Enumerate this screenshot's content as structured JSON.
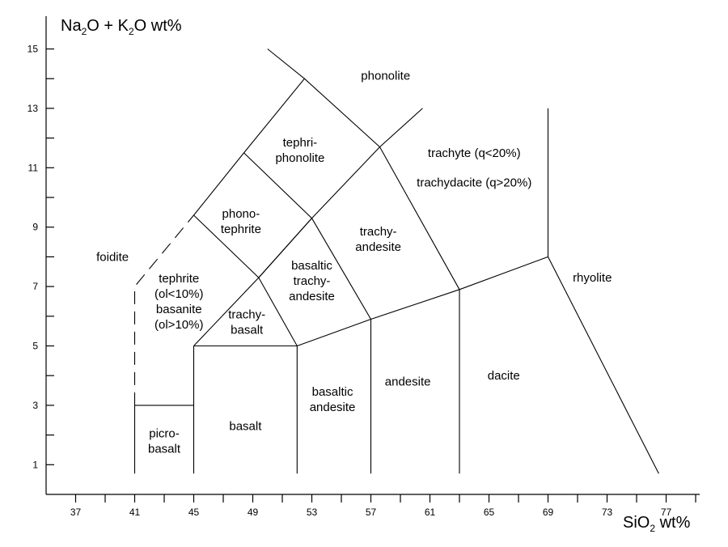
{
  "axis_titles": {
    "y": {
      "part1": "Na",
      "sub1": "2",
      "part2": "O + K",
      "sub2": "2",
      "part3": "O wt%"
    },
    "x": {
      "part1": "SiO",
      "sub1": "2",
      "part2": " wt%"
    }
  },
  "chart_data": {
    "type": "diagram",
    "xlim": [
      35,
      80
    ],
    "ylim": [
      0,
      15.5
    ],
    "x_ticks_labeled": [
      "37",
      "41",
      "45",
      "49",
      "53",
      "57",
      "61",
      "65",
      "69",
      "73",
      "77"
    ],
    "x_ticks_labeled_values": [
      37,
      41,
      45,
      49,
      53,
      57,
      61,
      65,
      69,
      73,
      77
    ],
    "x_minor_ticks": [
      39,
      43,
      47,
      51,
      55,
      59,
      63,
      67,
      71,
      75,
      79
    ],
    "y_ticks_labeled": [
      "1",
      "3",
      "5",
      "7",
      "9",
      "11",
      "13",
      "15"
    ],
    "y_ticks_labeled_values": [
      1,
      3,
      5,
      7,
      9,
      11,
      13,
      15
    ],
    "y_minor_ticks": [
      2,
      4,
      6,
      8,
      10,
      12,
      14
    ],
    "boundaries": [
      {
        "id": "picrobasalt-top",
        "style": "solid",
        "points": [
          [
            41,
            3
          ],
          [
            45,
            3
          ]
        ]
      },
      {
        "id": "x41-lower",
        "style": "solid",
        "points": [
          [
            41,
            3
          ],
          [
            41,
            0.7
          ]
        ]
      },
      {
        "id": "x41-upper",
        "style": "dashed",
        "points": [
          [
            41,
            3
          ],
          [
            41,
            7
          ],
          [
            45,
            9.4
          ]
        ]
      },
      {
        "id": "x45",
        "style": "solid",
        "points": [
          [
            45,
            0.7
          ],
          [
            45,
            5
          ]
        ]
      },
      {
        "id": "basalt-top",
        "style": "solid",
        "points": [
          [
            45,
            5
          ],
          [
            52,
            5
          ]
        ]
      },
      {
        "id": "x52",
        "style": "solid",
        "points": [
          [
            52,
            0.7
          ],
          [
            52,
            5
          ]
        ]
      },
      {
        "id": "x57",
        "style": "solid",
        "points": [
          [
            57,
            0.7
          ],
          [
            57,
            5.9
          ]
        ]
      },
      {
        "id": "x63",
        "style": "solid",
        "points": [
          [
            63,
            0.7
          ],
          [
            63,
            6.9
          ]
        ]
      },
      {
        "id": "alkaline-line",
        "style": "solid",
        "points": [
          [
            52,
            5
          ],
          [
            57,
            5.9
          ],
          [
            63,
            6.9
          ],
          [
            69,
            8
          ]
        ]
      },
      {
        "id": "x69",
        "style": "solid",
        "points": [
          [
            69,
            8
          ],
          [
            69,
            13
          ]
        ]
      },
      {
        "id": "rhyolite-dacite",
        "style": "solid",
        "points": [
          [
            69,
            8
          ],
          [
            76.5,
            0.7
          ]
        ]
      },
      {
        "id": "diag-1",
        "style": "solid",
        "points": [
          [
            45,
            5
          ],
          [
            49.4,
            7.3
          ],
          [
            53,
            9.3
          ],
          [
            57.6,
            11.7
          ],
          [
            60.5,
            13
          ]
        ]
      },
      {
        "id": "diag-2",
        "style": "solid",
        "points": [
          [
            45,
            9.4
          ],
          [
            48.4,
            11.5
          ],
          [
            52.5,
            14
          ],
          [
            50,
            15
          ]
        ]
      },
      {
        "id": "branch-a",
        "style": "solid",
        "points": [
          [
            52,
            5
          ],
          [
            49.4,
            7.3
          ]
        ]
      },
      {
        "id": "branch-b",
        "style": "solid",
        "points": [
          [
            49.4,
            7.3
          ],
          [
            45,
            9.4
          ]
        ]
      },
      {
        "id": "branch-c",
        "style": "solid",
        "points": [
          [
            53,
            9.3
          ],
          [
            48.4,
            11.5
          ]
        ]
      },
      {
        "id": "branch-d",
        "style": "solid",
        "points": [
          [
            57.6,
            11.7
          ],
          [
            52.5,
            14
          ]
        ]
      },
      {
        "id": "split-a",
        "style": "solid",
        "points": [
          [
            49.4,
            7.3
          ],
          [
            53,
            9.3
          ]
        ]
      },
      {
        "id": "split-b",
        "style": "solid",
        "points": [
          [
            53,
            9.3
          ],
          [
            57,
            5.9
          ]
        ]
      },
      {
        "id": "split-c",
        "style": "solid",
        "points": [
          [
            57.6,
            11.7
          ],
          [
            63,
            6.9
          ]
        ]
      }
    ],
    "fields": [
      {
        "name": "foidite",
        "lines": [
          "foidite"
        ],
        "at": [
          39.5,
          8
        ]
      },
      {
        "name": "tephrite-basanite",
        "lines": [
          "tephrite",
          "(ol<10%)",
          "basanite",
          "(ol>10%)"
        ],
        "at": [
          44,
          6.5
        ]
      },
      {
        "name": "picrobasalt",
        "lines": [
          "picro-",
          "basalt"
        ],
        "at": [
          43,
          1.8
        ]
      },
      {
        "name": "basalt",
        "lines": [
          "basalt"
        ],
        "at": [
          48.5,
          2.3
        ]
      },
      {
        "name": "trachybasalt",
        "lines": [
          "trachy-",
          "basalt"
        ],
        "at": [
          48.6,
          5.8
        ]
      },
      {
        "name": "phonotephrite",
        "lines": [
          "phono-",
          "tephrite"
        ],
        "at": [
          48.2,
          9.2
        ]
      },
      {
        "name": "tephriphonolite",
        "lines": [
          "tephri-",
          "phonolite"
        ],
        "at": [
          52.2,
          11.6
        ]
      },
      {
        "name": "phonolite",
        "lines": [
          "phonolite"
        ],
        "at": [
          58,
          14.1
        ]
      },
      {
        "name": "basaltic-trachyandesite",
        "lines": [
          "basaltic",
          "trachy-",
          "andesite"
        ],
        "at": [
          53,
          7.2
        ]
      },
      {
        "name": "trachyandesite",
        "lines": [
          "trachy-",
          "andesite"
        ],
        "at": [
          57.5,
          8.6
        ]
      },
      {
        "name": "trachyte",
        "lines": [
          "trachyte (q<20%)"
        ],
        "at": [
          64,
          11.5
        ]
      },
      {
        "name": "trachydacite",
        "lines": [
          "trachydacite (q>20%)"
        ],
        "at": [
          64,
          10.5
        ]
      },
      {
        "name": "basaltic-andesite",
        "lines": [
          "basaltic",
          "andesite"
        ],
        "at": [
          54.4,
          3.2
        ]
      },
      {
        "name": "andesite",
        "lines": [
          "andesite"
        ],
        "at": [
          59.5,
          3.8
        ]
      },
      {
        "name": "dacite",
        "lines": [
          "dacite"
        ],
        "at": [
          66,
          4
        ]
      },
      {
        "name": "rhyolite",
        "lines": [
          "rhyolite"
        ],
        "at": [
          72,
          7.3
        ]
      }
    ]
  }
}
